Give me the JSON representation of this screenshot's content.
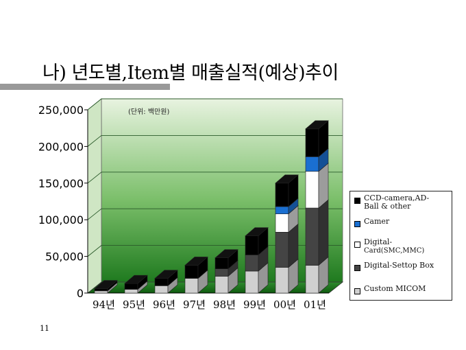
{
  "slide": {
    "title": "나) 년도별,Item별 매출실적(예상)추이",
    "page_number": "11"
  },
  "colors": {
    "title_bar": "#999999",
    "plot_bg_top": "#e8f3e0",
    "plot_bg_bottom": "#1f7a1f"
  },
  "chart_data": {
    "type": "bar",
    "stacked": true,
    "three_d": true,
    "unit_note": "(단위: 백만원)",
    "categories": [
      "94년",
      "95년",
      "96년",
      "97년",
      "98년",
      "99년",
      "00년",
      "01년"
    ],
    "y_ticks": [
      "250,000",
      "200,000",
      "150,000",
      "100,000",
      "50,000",
      "0"
    ],
    "ylim": [
      0,
      250000
    ],
    "grid": true,
    "legend_position": "right",
    "series": [
      {
        "name": "Custom MICOM",
        "color": "#d0d0d0",
        "values": [
          3000,
          5000,
          10000,
          20000,
          23000,
          30000,
          35000,
          38000
        ]
      },
      {
        "name": "Digital-Settop Box",
        "color": "#444444",
        "values": [
          0,
          0,
          0,
          0,
          10000,
          22000,
          48000,
          78000
        ]
      },
      {
        "name": "Digital-Card(SMC,MMC)",
        "color": "#ffffff",
        "values": [
          0,
          0,
          0,
          0,
          0,
          0,
          25000,
          50000
        ]
      },
      {
        "name": "Camer",
        "color": "#1a6fd1",
        "values": [
          0,
          0,
          0,
          0,
          0,
          0,
          10000,
          20000
        ]
      },
      {
        "name": "CCD-camera,AD-Ball & other",
        "color": "#000000",
        "values": [
          3000,
          8000,
          10000,
          18000,
          15000,
          26000,
          32000,
          38000
        ]
      }
    ]
  },
  "legend": {
    "items": [
      {
        "line1": "CCD-camera,AD-",
        "line2": "Ball & other",
        "color": "#000000"
      },
      {
        "line1": "Camer",
        "line2": "",
        "color": "#1a6fd1"
      },
      {
        "line1": "Digital-",
        "line2": "Card(SMC,MMC)",
        "color": "#ffffff"
      },
      {
        "line1": "Digital-Settop Box",
        "line2": "",
        "color": "#444444"
      },
      {
        "line1": "Custom MICOM",
        "line2": "",
        "color": "#d0d0d0"
      }
    ]
  }
}
